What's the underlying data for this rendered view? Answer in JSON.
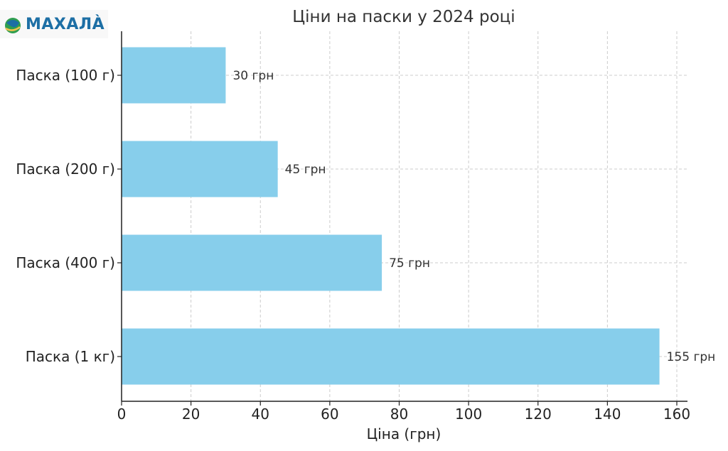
{
  "logo": {
    "text": "МАХАЛÀ"
  },
  "chart_data": {
    "type": "bar",
    "orientation": "horizontal",
    "title": "Ціни на паски у 2024 році",
    "xlabel": "Ціна (грн)",
    "ylabel": "",
    "categories": [
      "Паска (100 г)",
      "Паска (200 г)",
      "Паска (400 г)",
      "Паска (1 кг)"
    ],
    "values": [
      30,
      45,
      75,
      155
    ],
    "data_labels": [
      "30 грн",
      "45 грн",
      "75 грн",
      "155 грн"
    ],
    "xlim": [
      0,
      162
    ],
    "xticks": [
      0,
      20,
      40,
      60,
      80,
      100,
      120,
      140,
      160
    ],
    "grid": true,
    "bar_color": "#87ceeb"
  }
}
